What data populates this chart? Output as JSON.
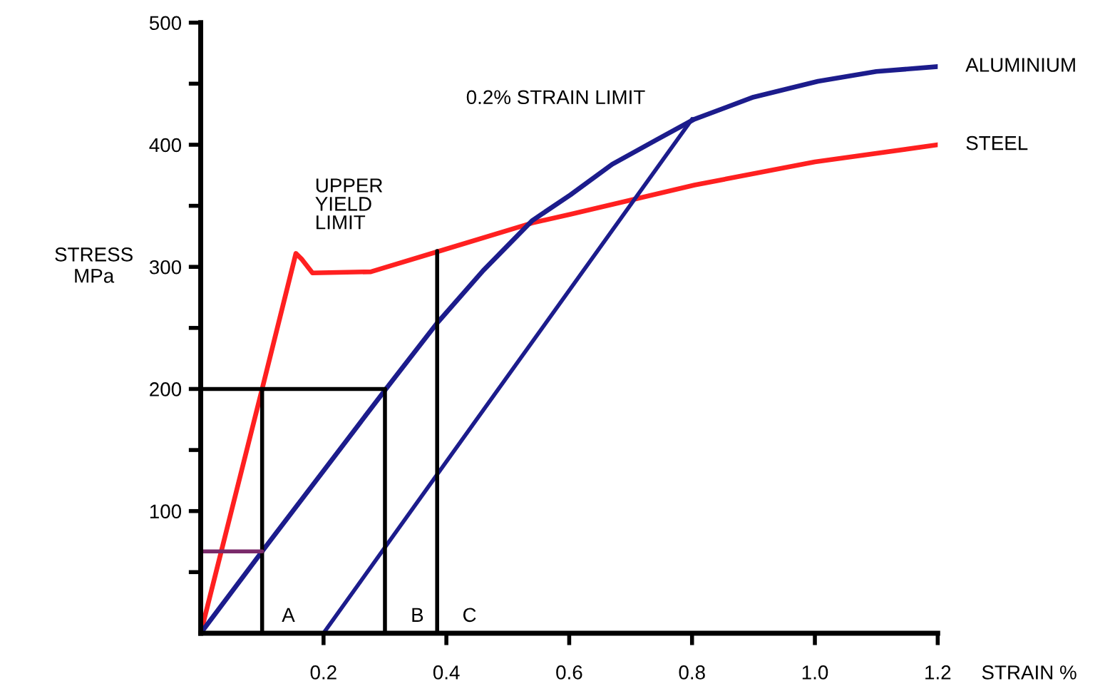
{
  "chart_data": {
    "type": "line",
    "xlabel": "STRAIN %",
    "ylabel": "STRESS\nMPa",
    "xlim": [
      0,
      1.2
    ],
    "ylim": [
      0,
      500
    ],
    "xticks": [
      0.2,
      0.4,
      0.6,
      0.8,
      {
        "value": 1.0,
        "label": "1.0"
      },
      1.2
    ],
    "yticks": [
      {
        "value": 50,
        "label": null
      },
      100,
      {
        "value": 150,
        "label": null
      },
      200,
      {
        "value": 250,
        "label": null
      },
      300,
      {
        "value": 350,
        "label": null
      },
      400,
      {
        "value": 450,
        "label": null
      },
      500
    ],
    "grid": false,
    "legend": false,
    "series": [
      {
        "name": "STEEL",
        "color": "#ff2020",
        "x": [
          0,
          0.1,
          0.155,
          0.165,
          0.182,
          0.277,
          0.389,
          0.54,
          0.602,
          0.804,
          1.0,
          1.2
        ],
        "values": [
          0,
          200,
          311,
          306,
          295,
          296,
          313,
          336,
          343,
          367,
          386,
          400
        ]
      },
      {
        "name": "ALUMINIUM",
        "color": "#1c1c8c",
        "x": [
          0,
          0.1,
          0.2,
          0.3,
          0.385,
          0.46,
          0.54,
          0.602,
          0.67,
          0.742,
          0.804,
          0.9,
          1.005,
          1.1,
          1.2
        ],
        "values": [
          0,
          67,
          133,
          199,
          254,
          297,
          338,
          359,
          384,
          404,
          421,
          439,
          452,
          460,
          464
        ]
      },
      {
        "color": "#1c1c8c",
        "x": [
          0.8,
          0.385,
          0.2
        ],
        "values": [
          421,
          130,
          0
        ]
      },
      {
        "color": "#000000",
        "x": [
          0,
          0.3
        ],
        "values": [
          200,
          200
        ]
      },
      {
        "color": "#000000",
        "x": [
          0.1,
          0.1
        ],
        "values": [
          200,
          0
        ]
      },
      {
        "color": "#000000",
        "x": [
          0.3,
          0.3
        ],
        "values": [
          200,
          0
        ]
      },
      {
        "color": "#000000",
        "x": [
          0.385,
          0.385
        ],
        "values": [
          313,
          0
        ]
      },
      {
        "color": "#7a2a6a",
        "x": [
          0,
          0.1
        ],
        "values": [
          67,
          67
        ]
      }
    ],
    "annotations": [
      "A",
      "B",
      "C",
      "UPPER\nYIELD\nLIMIT",
      "0.2% STRAIN LIMIT"
    ]
  }
}
